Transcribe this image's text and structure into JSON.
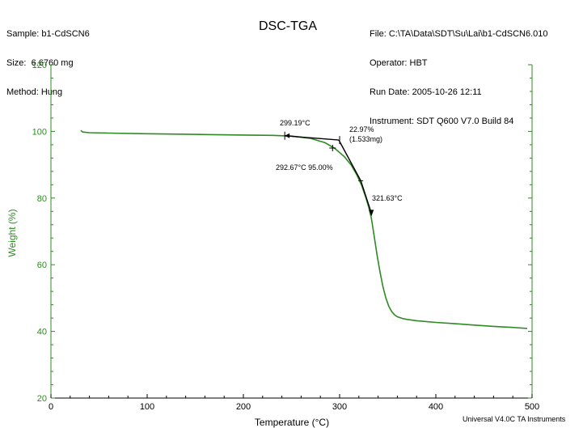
{
  "header": {
    "left": [
      {
        "label": "Sample:",
        "value": "b1-CdSCN6"
      },
      {
        "label": "Size:",
        "value": "6.6760 mg"
      },
      {
        "label": "Method:",
        "value": "Hung"
      }
    ],
    "right": [
      {
        "label": "File:",
        "value": "C:\\TA\\Data\\SDT\\Su\\Lai\\b1-CdSCN6.010"
      },
      {
        "label": "Operator:",
        "value": "HBT"
      },
      {
        "label": "Run Date:",
        "value": "2005-10-26 12:11"
      },
      {
        "label": "Instrument:",
        "value": "SDT Q600 V7.0 Build 84"
      }
    ]
  },
  "footer": {
    "credit": "Universal V4.0C TA Instruments"
  },
  "colors": {
    "curve": "#2e8b22",
    "axis_y": "#2e8b22",
    "axis_x": "#000000",
    "annotation": "#000000"
  },
  "chart_data": {
    "type": "line",
    "title": "DSC-TGA",
    "xlabel": "Temperature (°C)",
    "ylabel": "Weight (%)",
    "xlim": [
      0,
      500
    ],
    "ylim": [
      20,
      120
    ],
    "xticks": [
      0,
      100,
      200,
      300,
      400,
      500
    ],
    "yticks": [
      20,
      40,
      60,
      80,
      100,
      120
    ],
    "x_minor_step": 20,
    "y_minor_step": 4,
    "grid": false,
    "series": [
      {
        "points": [
          [
            31,
            100.3
          ],
          [
            33,
            99.8
          ],
          [
            40,
            99.6
          ],
          [
            60,
            99.5
          ],
          [
            100,
            99.3
          ],
          [
            150,
            99.1
          ],
          [
            200,
            98.9
          ],
          [
            230,
            98.8
          ],
          [
            250,
            98.6
          ],
          [
            270,
            97.9
          ],
          [
            285,
            96.6
          ],
          [
            295,
            94.9
          ],
          [
            305,
            92.4
          ],
          [
            312,
            89.9
          ],
          [
            318,
            86.9
          ],
          [
            323,
            83.7
          ],
          [
            327,
            80.4
          ],
          [
            330,
            77.5
          ],
          [
            333,
            73.9
          ],
          [
            336,
            68.5
          ],
          [
            339,
            62.8
          ],
          [
            342,
            57.8
          ],
          [
            345,
            53.5
          ],
          [
            348,
            50.1
          ],
          [
            351,
            47.6
          ],
          [
            354,
            46.0
          ],
          [
            357,
            45.0
          ],
          [
            360,
            44.4
          ],
          [
            365,
            43.9
          ],
          [
            370,
            43.6
          ],
          [
            380,
            43.2
          ],
          [
            400,
            42.7
          ],
          [
            420,
            42.3
          ],
          [
            440,
            41.9
          ],
          [
            460,
            41.5
          ],
          [
            480,
            41.2
          ],
          [
            495,
            40.9
          ]
        ]
      }
    ],
    "annotations": [
      {
        "text": "299.19°C"
      },
      {
        "text": "22.97%"
      },
      {
        "text": "(1.533mg)"
      },
      {
        "text": "292.67°C 95.00%"
      },
      {
        "text": "321.63°C"
      }
    ],
    "annotation_points": [
      {
        "name": "onset-tangent-start",
        "x": 243,
        "y": 98.7
      },
      {
        "name": "onset-intersection",
        "x": 299.19,
        "y": 97.4
      },
      {
        "name": "step-start-marker",
        "x": 300,
        "y": 97.4
      },
      {
        "name": "step-end-marker",
        "x": 322,
        "y": 85.2
      },
      {
        "name": "inflection-arrow-end",
        "x": 333,
        "y": 75.5
      },
      {
        "name": "point-95",
        "x": 292.67,
        "y": 95.0
      }
    ]
  }
}
